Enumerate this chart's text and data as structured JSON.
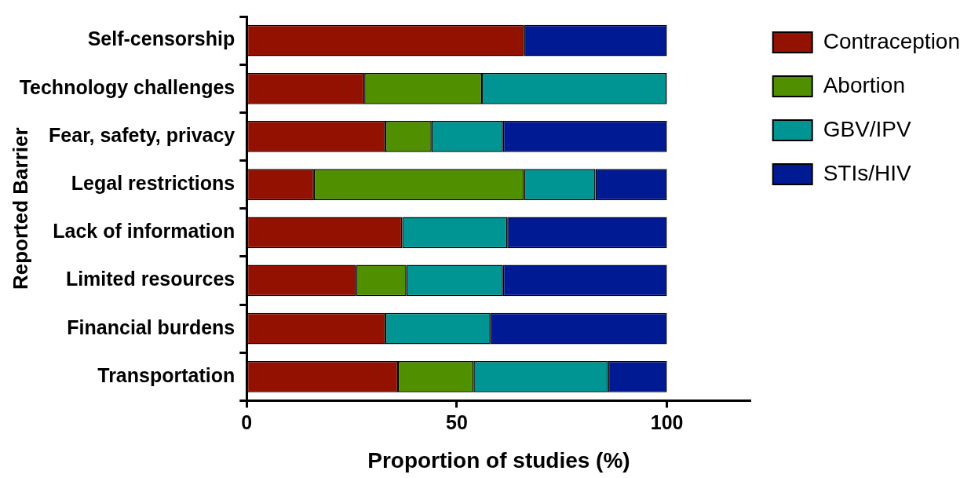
{
  "chart_data": {
    "type": "bar",
    "orientation": "horizontal",
    "stacked": true,
    "xlabel": "Proportion of studies (%)",
    "ylabel": "Reported Barrier",
    "categories": [
      "Self-censorship",
      "Technology challenges",
      "Fear, safety, privacy",
      "Legal restrictions",
      "Lack of information",
      "Limited resources",
      "Financial burdens",
      "Transportation"
    ],
    "series": [
      {
        "name": "Contraception",
        "color": "#931100",
        "values": [
          66,
          28,
          33,
          16,
          37,
          26,
          33,
          36
        ]
      },
      {
        "name": "Abortion",
        "color": "#4f8f00",
        "values": [
          null,
          28,
          11,
          50,
          null,
          12,
          null,
          18
        ]
      },
      {
        "name": "GBV/IPV",
        "color": "#009593",
        "values": [
          null,
          44,
          17,
          17,
          25,
          23,
          25,
          32
        ]
      },
      {
        "name": "STIs/HIV",
        "color": "#001a93",
        "values": [
          34,
          null,
          39,
          17,
          38,
          39,
          42,
          14
        ]
      }
    ],
    "xlim": [
      0,
      120
    ],
    "xticks": [
      0,
      50,
      100
    ],
    "grid": false,
    "legend": "top right"
  }
}
